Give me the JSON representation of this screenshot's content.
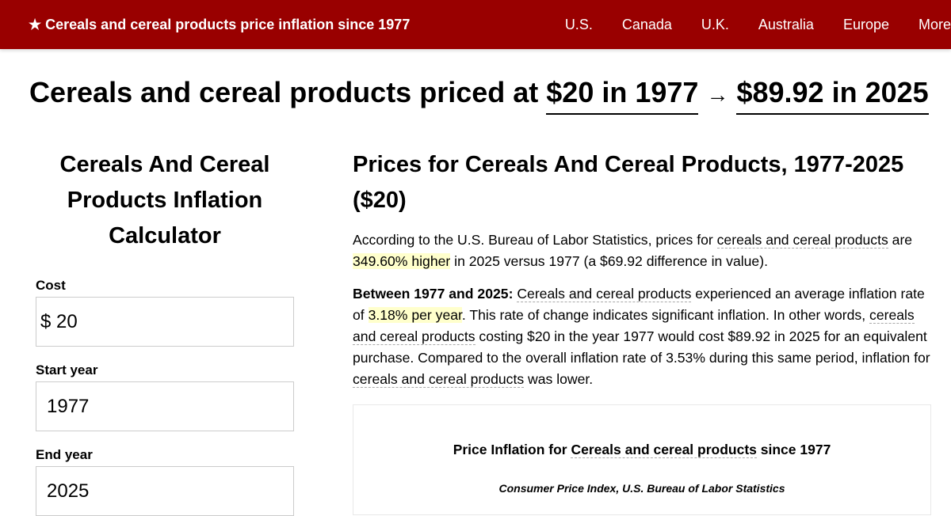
{
  "nav": {
    "brand": "★ Cereals and cereal products price inflation since 1977",
    "links": [
      "U.S.",
      "Canada",
      "U.K.",
      "Australia",
      "Europe",
      "More"
    ]
  },
  "headline": {
    "prefix": "Cereals and cereal products priced at",
    "start": "$20 in 1977",
    "arrow": "→",
    "end": "$89.92 in 2025"
  },
  "calculator": {
    "title": "Cereals And Cereal Products Inflation Calculator",
    "cost_label": "Cost",
    "currency": "$",
    "cost": "20",
    "start_label": "Start year",
    "start": "1977",
    "end_label": "End year",
    "end": "2025"
  },
  "main": {
    "title": "Prices for Cereals And Cereal Products, 1977-2025 ($20)",
    "p1": {
      "a": "According to the U.S. Bureau of Labor Statistics, prices for ",
      "link": "cereals and cereal products",
      "b": " are ",
      "hl": "349.60% higher",
      "c": " in 2025 versus 1977 (a $69.92 difference in value)."
    },
    "p2": {
      "bold": "Between 1977 and 2025:",
      "link1": "Cereals and cereal products",
      "a": " experienced an average inflation rate of ",
      "hl": "3.18% per year",
      "b": ". This rate of change indicates significant inflation. In other words, ",
      "link2": "cereals and cereal products",
      "c": " costing $20 in the year 1977 would cost $89.92 in 2025 for an equivalent purchase. Compared to the overall inflation rate of 3.53% during this same period, inflation for ",
      "link3": "cereals and cereal products",
      "d": " was lower."
    },
    "chart": {
      "title_a": "Price Inflation for ",
      "title_link": "Cereals and cereal products",
      "title_b": " since 1977",
      "subtitle": "Consumer Price Index, U.S. Bureau of Labor Statistics"
    }
  },
  "colors": {
    "nav": "#990000",
    "highlight": "#ffffcc"
  }
}
